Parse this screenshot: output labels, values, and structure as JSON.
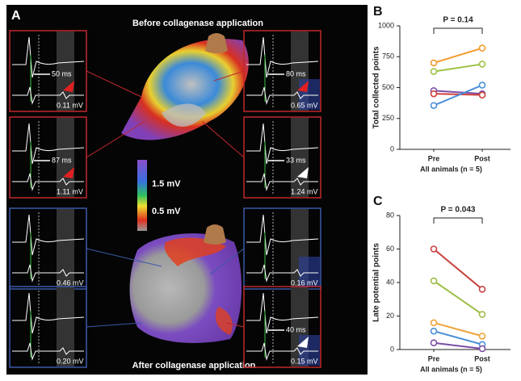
{
  "panel_a": {
    "label": "A",
    "title_top": "Before collagenase application",
    "title_bottom": "After collagenase application",
    "colorbar": {
      "max": "1.5 mV",
      "min": "0.5 mV"
    },
    "insets": [
      {
        "interval": "50 ms",
        "amplitude": "0.11 mV"
      },
      {
        "interval": "80 ms",
        "amplitude": "0.65 mV"
      },
      {
        "interval": "87 ms",
        "amplitude": "1.11 mV"
      },
      {
        "interval": "33 ms",
        "amplitude": "1.24 mV"
      },
      {
        "amplitude": "0.46 mV"
      },
      {
        "amplitude": "0.16 mV"
      },
      {
        "amplitude": "0.20 mV"
      },
      {
        "interval": "40 ms",
        "amplitude": "0.15 mV"
      }
    ]
  },
  "chart_data": [
    {
      "type": "line",
      "panel": "B",
      "annotation": "P = 0.14",
      "ylabel": "Total collected points",
      "xlabel": "All animals (n = 5)",
      "categories": [
        "Pre",
        "Post"
      ],
      "ylim": [
        0,
        1000
      ],
      "yticks": [
        0,
        250,
        500,
        750,
        1000
      ],
      "series": [
        {
          "color": "#f39a2d",
          "values": [
            700,
            820
          ]
        },
        {
          "color": "#9dc346",
          "values": [
            630,
            690
          ]
        },
        {
          "color": "#7b4fa6",
          "values": [
            475,
            450
          ]
        },
        {
          "color": "#d0413d",
          "values": [
            450,
            440
          ]
        },
        {
          "color": "#4a90d9",
          "values": [
            355,
            520
          ]
        }
      ]
    },
    {
      "type": "line",
      "panel": "C",
      "annotation": "P = 0.043",
      "ylabel": "Late potential points",
      "xlabel": "All animals (n = 5)",
      "categories": [
        "Pre",
        "Post"
      ],
      "ylim": [
        0,
        80
      ],
      "yticks": [
        0,
        20,
        40,
        60,
        80
      ],
      "series": [
        {
          "color": "#c8413f",
          "values": [
            60,
            36
          ]
        },
        {
          "color": "#9dbd45",
          "values": [
            41,
            21
          ]
        },
        {
          "color": "#f0a33a",
          "values": [
            16,
            8
          ]
        },
        {
          "color": "#4a8fd6",
          "values": [
            11,
            3
          ]
        },
        {
          "color": "#7b4fa6",
          "values": [
            4,
            0.5
          ]
        }
      ]
    }
  ]
}
